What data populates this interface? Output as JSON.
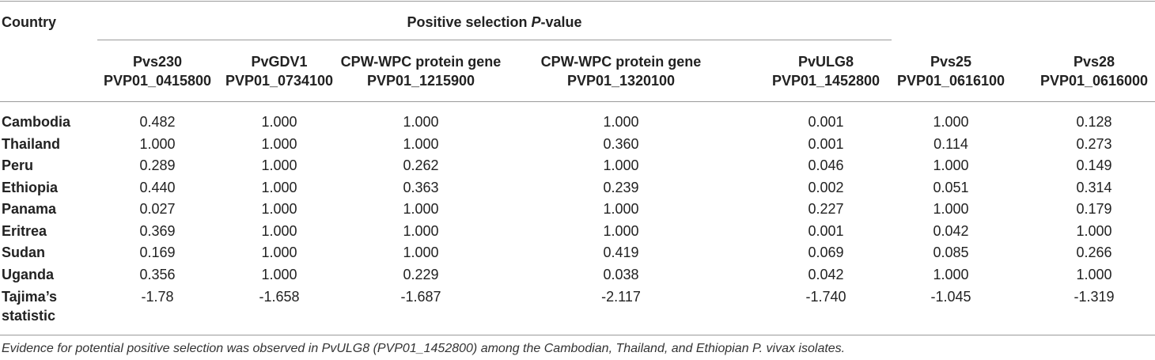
{
  "table": {
    "country_header": "Country",
    "group_header_prefix": "Positive selection ",
    "group_header_italic": "P",
    "group_header_suffix": "-value",
    "columns": [
      {
        "line1": "Pvs230",
        "line2": "PVP01_0415800"
      },
      {
        "line1": "PvGDV1",
        "line2": "PVP01_0734100"
      },
      {
        "line1": "CPW-WPC protein gene",
        "line2": "PVP01_1215900"
      },
      {
        "line1": "CPW-WPC protein gene",
        "line2": "PVP01_1320100"
      },
      {
        "line1": "PvULG8",
        "line2": "PVP01_1452800"
      },
      {
        "line1": "Pvs25",
        "line2": "PVP01_0616100"
      },
      {
        "line1": "Pvs28",
        "line2": "PVP01_0616000"
      }
    ],
    "rows": [
      {
        "label": "Cambodia",
        "values": [
          "0.482",
          "1.000",
          "1.000",
          "1.000",
          "0.001",
          "1.000",
          "0.128"
        ]
      },
      {
        "label": "Thailand",
        "values": [
          "1.000",
          "1.000",
          "1.000",
          "0.360",
          "0.001",
          "0.114",
          "0.273"
        ]
      },
      {
        "label": "Peru",
        "values": [
          "0.289",
          "1.000",
          "0.262",
          "1.000",
          "0.046",
          "1.000",
          "0.149"
        ]
      },
      {
        "label": "Ethiopia",
        "values": [
          "0.440",
          "1.000",
          "0.363",
          "0.239",
          "0.002",
          "0.051",
          "0.314"
        ]
      },
      {
        "label": "Panama",
        "values": [
          "0.027",
          "1.000",
          "1.000",
          "1.000",
          "0.227",
          "1.000",
          "0.179"
        ]
      },
      {
        "label": "Eritrea",
        "values": [
          "0.369",
          "1.000",
          "1.000",
          "1.000",
          "0.001",
          "0.042",
          "1.000"
        ]
      },
      {
        "label": "Sudan",
        "values": [
          "0.169",
          "1.000",
          "1.000",
          "0.419",
          "0.069",
          "0.085",
          "0.266"
        ]
      },
      {
        "label": "Uganda",
        "values": [
          "0.356",
          "1.000",
          "0.229",
          "0.038",
          "0.042",
          "1.000",
          "1.000"
        ]
      }
    ],
    "tajima": {
      "label_line1": "Tajima’s",
      "label_line2": "statistic",
      "values": [
        "-1.78",
        "-1.658",
        "-1.687",
        "-2.117",
        "-1.740",
        "-1.045",
        "-1.319"
      ]
    }
  },
  "footnote": "Evidence for potential positive selection was observed in PvULG8 (PVP01_1452800) among the Cambodian, Thailand, and Ethiopian P. vivax isolates."
}
